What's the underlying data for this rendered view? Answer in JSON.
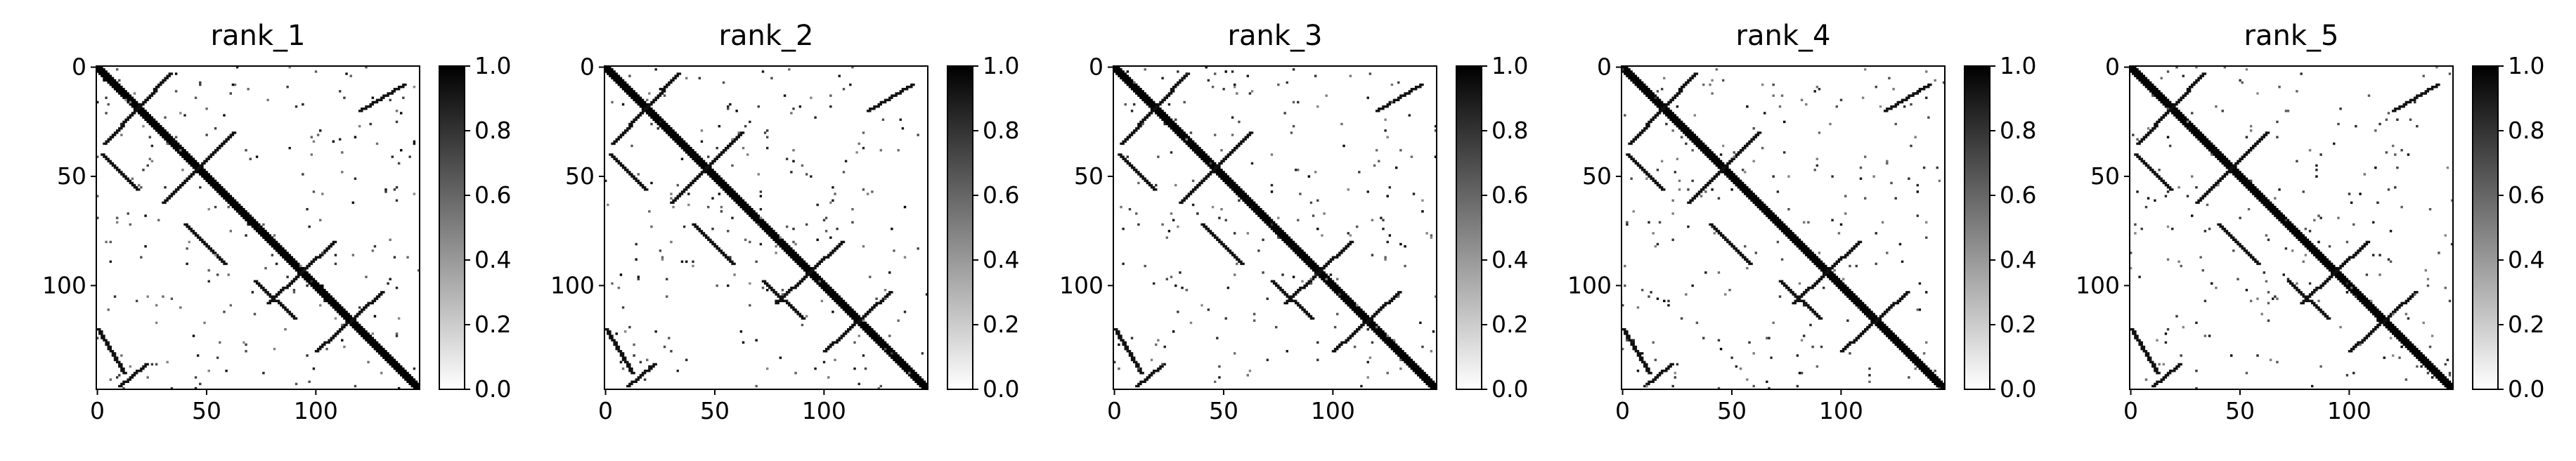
{
  "chart_data": [
    {
      "type": "heatmap",
      "title": "rank_1",
      "matrix_size": 148,
      "x_ticks": [
        "0",
        "50",
        "100"
      ],
      "y_ticks": [
        "0",
        "50",
        "100"
      ],
      "colorbar_ticks": [
        "0.0",
        "0.2",
        "0.4",
        "0.6",
        "0.8",
        "1.0"
      ],
      "colormap": [
        "#ffffff",
        "#000000"
      ],
      "value_range": [
        0.0,
        1.0
      ],
      "diagonal_band": true,
      "antidiagonal_segments": [
        {
          "start": [
            3,
            35
          ],
          "end": [
            33,
            3
          ]
        },
        {
          "start": [
            30,
            62
          ],
          "end": [
            62,
            30
          ]
        },
        {
          "start": [
            78,
            108
          ],
          "end": [
            108,
            80
          ]
        },
        {
          "start": [
            100,
            130
          ],
          "end": [
            130,
            103
          ]
        },
        {
          "start": [
            10,
            146
          ],
          "end": [
            22,
            136
          ]
        },
        {
          "start": [
            120,
            20
          ],
          "end": [
            140,
            8
          ]
        }
      ],
      "parallel_segments": [
        {
          "start": [
            2,
            40
          ],
          "end": [
            18,
            56
          ]
        },
        {
          "start": [
            40,
            72
          ],
          "end": [
            58,
            90
          ]
        },
        {
          "start": [
            72,
            98
          ],
          "end": [
            90,
            115
          ]
        },
        {
          "start": [
            0,
            120
          ],
          "end": [
            12,
            140
          ]
        }
      ]
    },
    {
      "type": "heatmap",
      "title": "rank_2",
      "matrix_size": 148,
      "x_ticks": [
        "0",
        "50",
        "100"
      ],
      "y_ticks": [
        "0",
        "50",
        "100"
      ],
      "colorbar_ticks": [
        "0.0",
        "0.2",
        "0.4",
        "0.6",
        "0.8",
        "1.0"
      ],
      "colormap": [
        "#ffffff",
        "#000000"
      ],
      "value_range": [
        0.0,
        1.0
      ],
      "diagonal_band": true,
      "antidiagonal_segments": [
        {
          "start": [
            3,
            35
          ],
          "end": [
            33,
            3
          ]
        },
        {
          "start": [
            30,
            62
          ],
          "end": [
            62,
            30
          ]
        },
        {
          "start": [
            78,
            108
          ],
          "end": [
            108,
            80
          ]
        },
        {
          "start": [
            100,
            130
          ],
          "end": [
            130,
            103
          ]
        },
        {
          "start": [
            10,
            146
          ],
          "end": [
            22,
            136
          ]
        },
        {
          "start": [
            120,
            20
          ],
          "end": [
            140,
            8
          ]
        }
      ],
      "parallel_segments": [
        {
          "start": [
            2,
            40
          ],
          "end": [
            18,
            56
          ]
        },
        {
          "start": [
            40,
            72
          ],
          "end": [
            58,
            90
          ]
        },
        {
          "start": [
            72,
            98
          ],
          "end": [
            90,
            115
          ]
        },
        {
          "start": [
            0,
            120
          ],
          "end": [
            12,
            140
          ]
        }
      ]
    },
    {
      "type": "heatmap",
      "title": "rank_3",
      "matrix_size": 148,
      "x_ticks": [
        "0",
        "50",
        "100"
      ],
      "y_ticks": [
        "0",
        "50",
        "100"
      ],
      "colorbar_ticks": [
        "0.0",
        "0.2",
        "0.4",
        "0.6",
        "0.8",
        "1.0"
      ],
      "colormap": [
        "#ffffff",
        "#000000"
      ],
      "value_range": [
        0.0,
        1.0
      ],
      "diagonal_band": true,
      "antidiagonal_segments": [
        {
          "start": [
            3,
            35
          ],
          "end": [
            33,
            3
          ]
        },
        {
          "start": [
            30,
            62
          ],
          "end": [
            62,
            30
          ]
        },
        {
          "start": [
            78,
            108
          ],
          "end": [
            108,
            80
          ]
        },
        {
          "start": [
            100,
            130
          ],
          "end": [
            130,
            103
          ]
        },
        {
          "start": [
            10,
            146
          ],
          "end": [
            22,
            136
          ]
        },
        {
          "start": [
            120,
            20
          ],
          "end": [
            140,
            8
          ]
        }
      ],
      "parallel_segments": [
        {
          "start": [
            2,
            40
          ],
          "end": [
            18,
            56
          ]
        },
        {
          "start": [
            40,
            72
          ],
          "end": [
            58,
            90
          ]
        },
        {
          "start": [
            72,
            98
          ],
          "end": [
            90,
            115
          ]
        },
        {
          "start": [
            0,
            120
          ],
          "end": [
            12,
            140
          ]
        }
      ]
    },
    {
      "type": "heatmap",
      "title": "rank_4",
      "matrix_size": 148,
      "x_ticks": [
        "0",
        "50",
        "100"
      ],
      "y_ticks": [
        "0",
        "50",
        "100"
      ],
      "colorbar_ticks": [
        "0.0",
        "0.2",
        "0.4",
        "0.6",
        "0.8",
        "1.0"
      ],
      "colormap": [
        "#ffffff",
        "#000000"
      ],
      "value_range": [
        0.0,
        1.0
      ],
      "diagonal_band": true,
      "antidiagonal_segments": [
        {
          "start": [
            3,
            35
          ],
          "end": [
            33,
            3
          ]
        },
        {
          "start": [
            30,
            62
          ],
          "end": [
            62,
            30
          ]
        },
        {
          "start": [
            78,
            108
          ],
          "end": [
            108,
            80
          ]
        },
        {
          "start": [
            100,
            130
          ],
          "end": [
            130,
            103
          ]
        },
        {
          "start": [
            10,
            146
          ],
          "end": [
            22,
            136
          ]
        },
        {
          "start": [
            120,
            20
          ],
          "end": [
            140,
            8
          ]
        }
      ],
      "parallel_segments": [
        {
          "start": [
            2,
            40
          ],
          "end": [
            18,
            56
          ]
        },
        {
          "start": [
            40,
            72
          ],
          "end": [
            58,
            90
          ]
        },
        {
          "start": [
            72,
            98
          ],
          "end": [
            90,
            115
          ]
        },
        {
          "start": [
            0,
            120
          ],
          "end": [
            12,
            140
          ]
        }
      ]
    },
    {
      "type": "heatmap",
      "title": "rank_5",
      "matrix_size": 148,
      "x_ticks": [
        "0",
        "50",
        "100"
      ],
      "y_ticks": [
        "0",
        "50",
        "100"
      ],
      "colorbar_ticks": [
        "0.0",
        "0.2",
        "0.4",
        "0.6",
        "0.8",
        "1.0"
      ],
      "colormap": [
        "#ffffff",
        "#000000"
      ],
      "value_range": [
        0.0,
        1.0
      ],
      "diagonal_band": true,
      "antidiagonal_segments": [
        {
          "start": [
            3,
            35
          ],
          "end": [
            33,
            3
          ]
        },
        {
          "start": [
            30,
            62
          ],
          "end": [
            62,
            30
          ]
        },
        {
          "start": [
            78,
            108
          ],
          "end": [
            108,
            80
          ]
        },
        {
          "start": [
            100,
            130
          ],
          "end": [
            130,
            103
          ]
        },
        {
          "start": [
            10,
            146
          ],
          "end": [
            22,
            136
          ]
        },
        {
          "start": [
            120,
            20
          ],
          "end": [
            140,
            8
          ]
        }
      ],
      "parallel_segments": [
        {
          "start": [
            2,
            40
          ],
          "end": [
            18,
            56
          ]
        },
        {
          "start": [
            40,
            72
          ],
          "end": [
            58,
            90
          ]
        },
        {
          "start": [
            72,
            98
          ],
          "end": [
            90,
            115
          ]
        },
        {
          "start": [
            0,
            120
          ],
          "end": [
            12,
            140
          ]
        }
      ]
    }
  ]
}
